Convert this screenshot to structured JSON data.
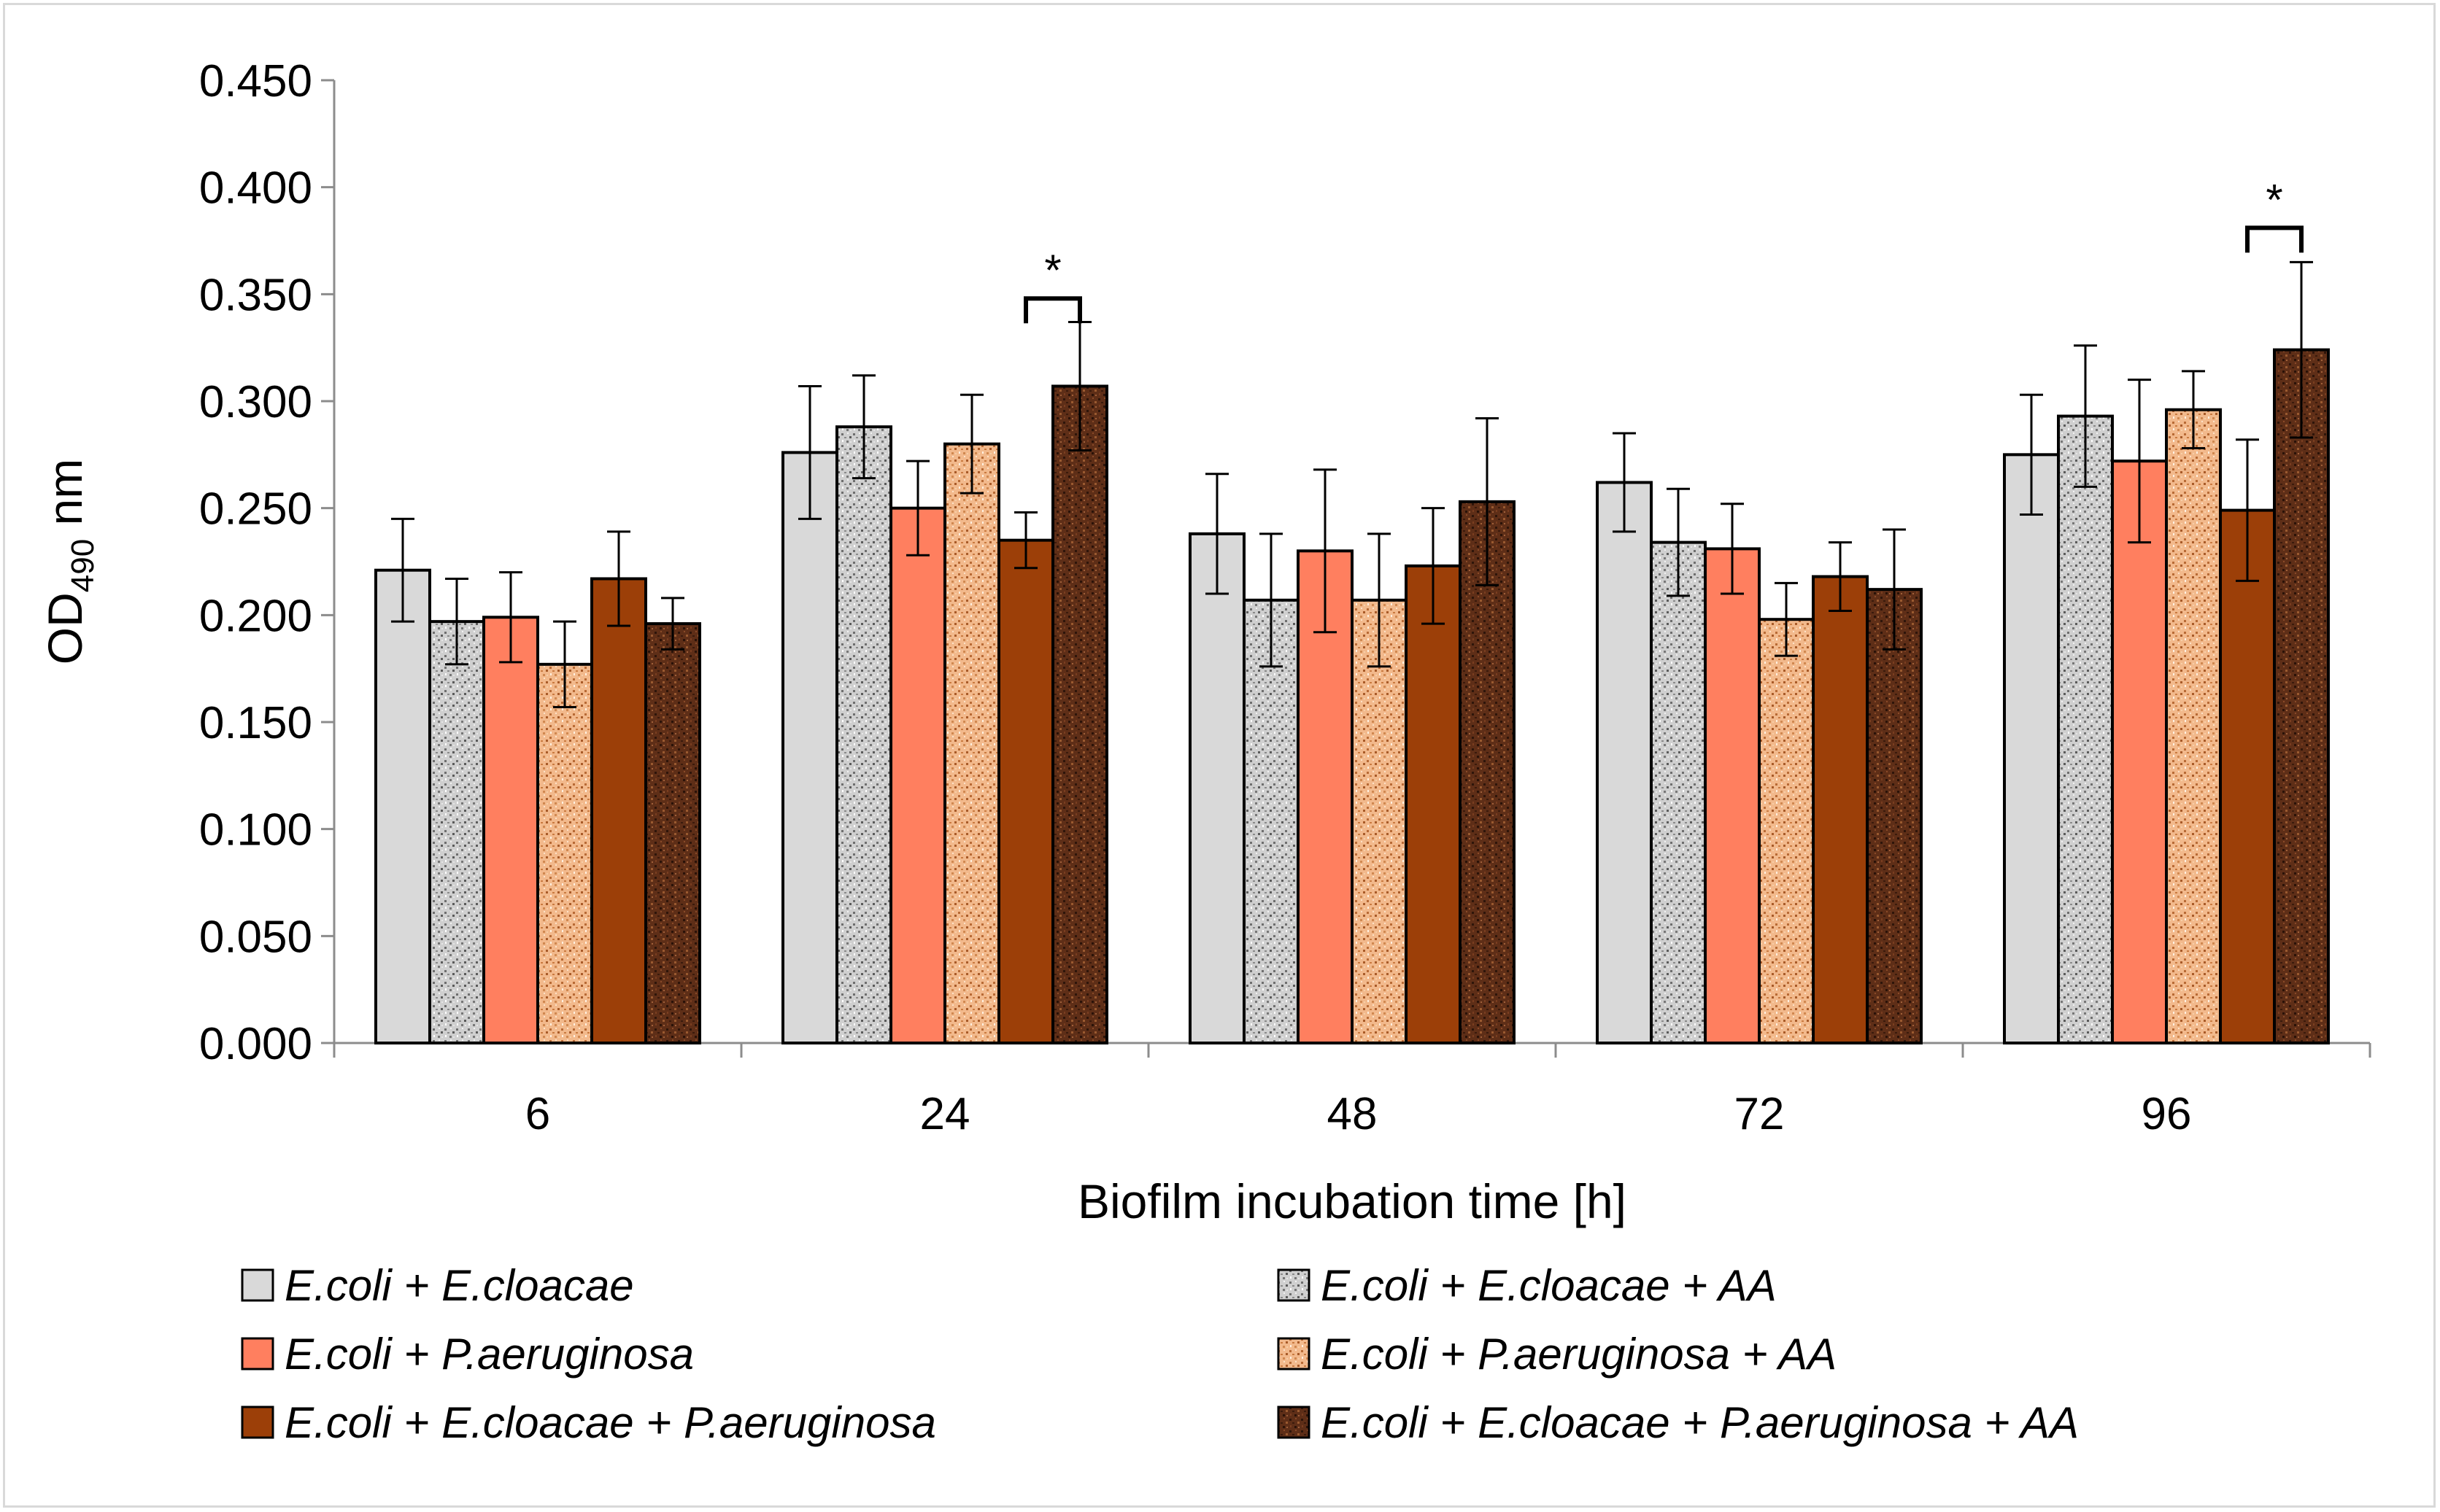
{
  "chart_data": {
    "type": "bar",
    "title": "",
    "xlabel": "Biofilm incubation time [h]",
    "ylabel_main": "OD",
    "ylabel_sub": "490",
    "ylabel_unit": " nm",
    "ylim": [
      0,
      0.45
    ],
    "yticks": [
      "0.000",
      "0.050",
      "0.100",
      "0.150",
      "0.200",
      "0.250",
      "0.300",
      "0.350",
      "0.400",
      "0.450"
    ],
    "grid": false,
    "categories": [
      "6",
      "24",
      "48",
      "72",
      "96"
    ],
    "series": [
      {
        "name": "E.coli + E.cloacae",
        "color": "#d9d9d9",
        "pattern": "solid",
        "values": [
          0.221,
          0.276,
          0.238,
          0.262,
          0.275
        ],
        "errors": [
          0.024,
          0.031,
          0.028,
          0.023,
          0.028
        ]
      },
      {
        "name": "E.coli + E.cloacae + AA",
        "color": "#bfbfbf",
        "pattern": "speckle-grey",
        "values": [
          0.197,
          0.288,
          0.207,
          0.234,
          0.293
        ],
        "errors": [
          0.02,
          0.024,
          0.031,
          0.025,
          0.033
        ]
      },
      {
        "name": "E.coli + P.aeruginosa",
        "color": "#ff7f5f",
        "pattern": "solid",
        "values": [
          0.199,
          0.25,
          0.23,
          0.231,
          0.272
        ],
        "errors": [
          0.021,
          0.022,
          0.038,
          0.021,
          0.038
        ]
      },
      {
        "name": "E.coli + P.aeruginosa + AA",
        "color": "#f0b07a",
        "pattern": "speckle-orange",
        "values": [
          0.177,
          0.28,
          0.207,
          0.198,
          0.296
        ],
        "errors": [
          0.02,
          0.023,
          0.031,
          0.017,
          0.018
        ]
      },
      {
        "name": "E.coli + E.cloacae + P.aeruginosa",
        "color": "#9c3f08",
        "pattern": "solid",
        "values": [
          0.217,
          0.235,
          0.223,
          0.218,
          0.249
        ],
        "errors": [
          0.022,
          0.013,
          0.027,
          0.016,
          0.033
        ]
      },
      {
        "name": "E.coli + E.cloacae + P.aeruginosa + AA",
        "color": "#5a2a14",
        "pattern": "speckle-brown",
        "values": [
          0.196,
          0.307,
          0.253,
          0.212,
          0.324
        ],
        "errors": [
          0.012,
          0.03,
          0.039,
          0.028,
          0.041
        ]
      }
    ],
    "annotations": [
      {
        "label": "*",
        "category": "24",
        "between_series": [
          4,
          5
        ],
        "bracket_y": 0.348
      },
      {
        "label": "*",
        "category": "96",
        "between_series": [
          4,
          5
        ],
        "bracket_y": 0.381
      }
    ]
  }
}
